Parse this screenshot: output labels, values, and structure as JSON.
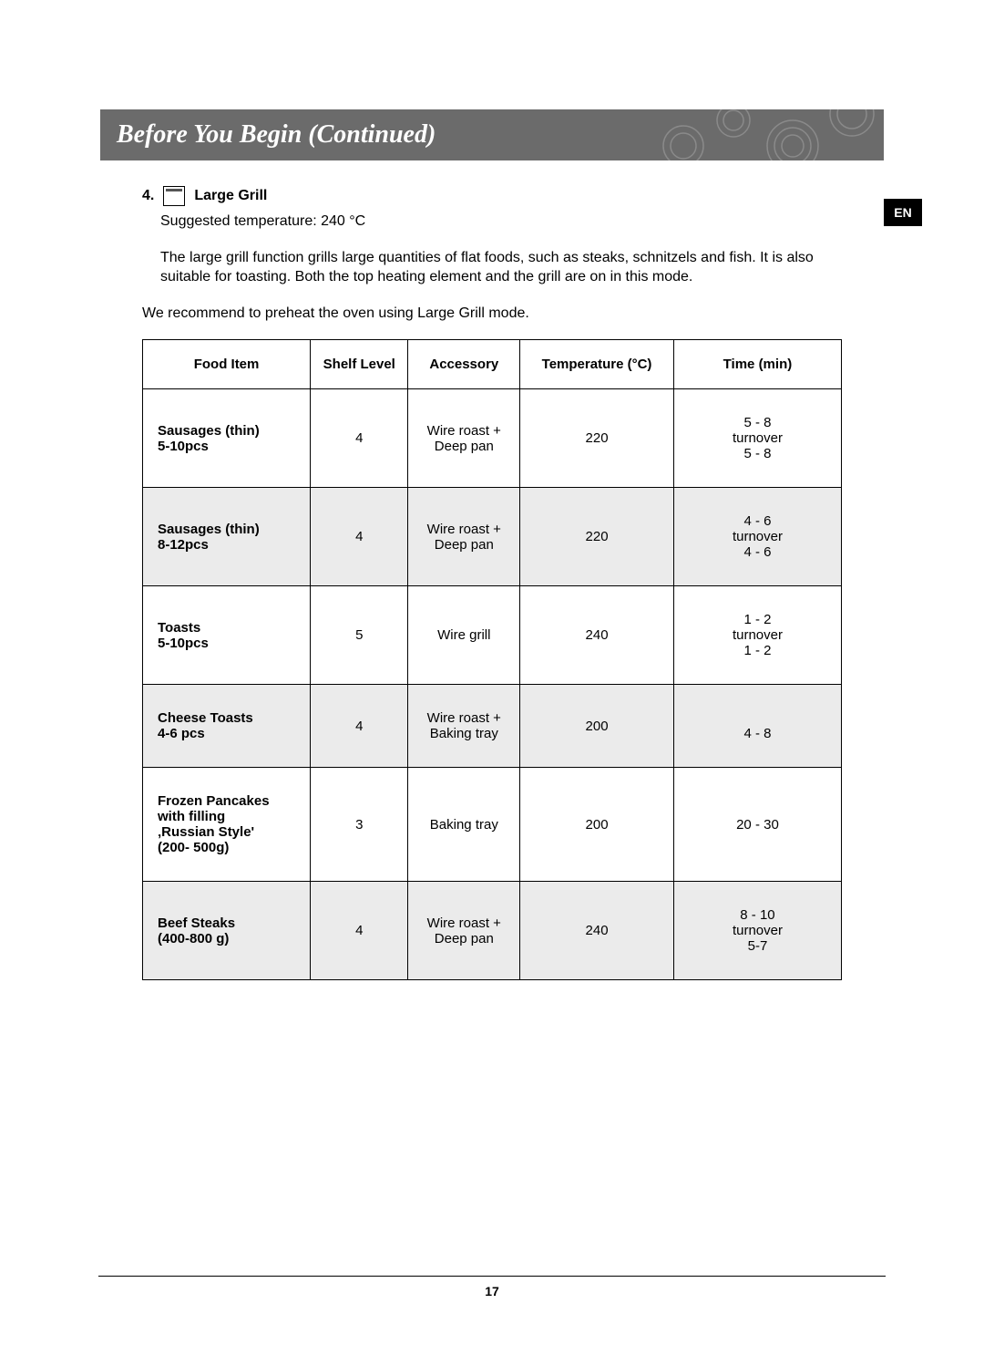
{
  "header": {
    "title": "Before You Begin (Continued)",
    "background_color": "#6b6b6b",
    "title_color": "#ffffff",
    "title_font": "Times New Roman Italic Bold",
    "title_fontsize": 28
  },
  "lang_badge": {
    "text": "EN",
    "bg_color": "#000000",
    "text_color": "#ffffff"
  },
  "section": {
    "number": "4.",
    "title": "Large Grill",
    "suggested_temp": "Suggested temperature: 240 °C",
    "description": "The large grill function grills large quantities of flat foods, such as steaks, schnitzels and fish. It is also suitable for toasting. Both the top heating element and the grill are on in this mode.",
    "recommendation": "We recommend to preheat the oven using Large Grill mode."
  },
  "table": {
    "columns": {
      "food": "Food Item",
      "shelf": "Shelf Level",
      "accessory": "Accessory",
      "temperature": "Temperature (°C)",
      "time": "Time (min)"
    },
    "column_widths_pct": [
      24,
      14,
      16,
      22,
      24
    ],
    "alt_row_bg": "#ebebeb",
    "border_color": "#000000",
    "header_fontsize": 15,
    "cell_fontsize": 15,
    "rows": [
      {
        "food": "Sausages (thin)\n5-10pcs",
        "shelf": "4",
        "accessory": "Wire roast +\nDeep pan",
        "temperature": "220",
        "time": "5 - 8\nturnover\n5 - 8",
        "alt": false
      },
      {
        "food": "Sausages (thin)\n8-12pcs",
        "shelf": "4",
        "accessory": "Wire roast +\nDeep pan",
        "temperature": "220",
        "time": "4 - 6\nturnover\n4 - 6",
        "alt": true
      },
      {
        "food": "Toasts\n5-10pcs",
        "shelf": "5",
        "accessory": "Wire grill",
        "temperature": "240",
        "time": "1 - 2\nturnover\n1 - 2",
        "alt": false
      },
      {
        "food": "Cheese Toasts\n4-6 pcs",
        "shelf": "4",
        "accessory": "Wire roast +\nBaking tray",
        "temperature": "200",
        "time": "\n4 - 8",
        "alt": true
      },
      {
        "food": "Frozen Pancakes\nwith filling\n‚Russian Style'\n(200- 500g)",
        "shelf": "3",
        "accessory": "Baking tray",
        "temperature": "200",
        "time": "20 - 30",
        "alt": false
      },
      {
        "food": "Beef Steaks\n(400-800 g)",
        "shelf": "4",
        "accessory": "Wire roast +\nDeep pan",
        "temperature": "240",
        "time": "8 - 10\nturnover\n5-7",
        "alt": true
      }
    ]
  },
  "page_number": "17"
}
